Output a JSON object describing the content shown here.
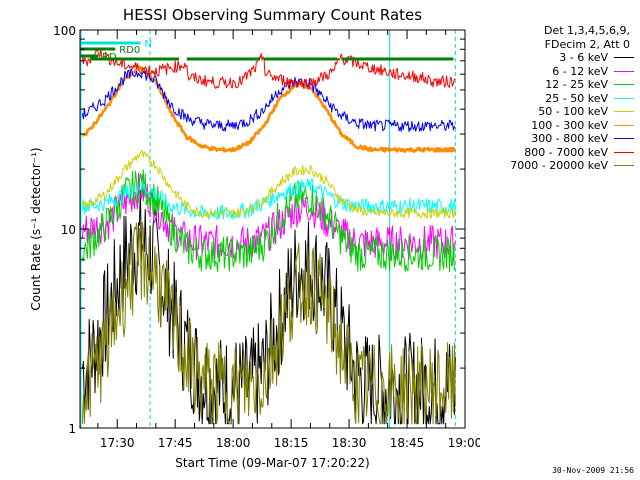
{
  "chart_data": {
    "type": "line",
    "title": "HESSI Observing Summary Count Rates",
    "xlabel": "Start Time (09-Mar-07 17:20:22)",
    "ylabel": "Count Rate (s⁻¹ detector⁻¹)",
    "y_scale": "log",
    "ylim": [
      1,
      100
    ],
    "xlim": [
      20.37,
      120.0
    ],
    "x_unit": "minutes after 17:00 UT",
    "x_tick_labels": [
      "17:30",
      "17:45",
      "18:00",
      "18:15",
      "18:30",
      "18:45",
      "19:00"
    ],
    "x_ticks": [
      30,
      45,
      60,
      75,
      90,
      105,
      120
    ],
    "y_tick_labels": [
      "1",
      "10",
      "100"
    ],
    "y_ticks": [
      1,
      10,
      100
    ],
    "legend": {
      "header": [
        "Det 1,3,4,5,6,9,",
        "FDecim 2, Att 0"
      ],
      "position": "right-outside"
    },
    "flags": [
      {
        "label": "N",
        "color": "#00e0e0",
        "x_start": 20.6,
        "x_end": 36.0
      },
      {
        "label": "RD0",
        "color": "#008000",
        "x_start": 20.6,
        "x_end": 29.5
      },
      {
        "label": "RD",
        "color": "#008000",
        "x_start": 20.6,
        "x_end": 25.0
      }
    ],
    "night_lines_solid": [
      20.6,
      100.5
    ],
    "night_lines_dashed": [
      38.5,
      117.5
    ],
    "series": [
      {
        "name": "3 - 6 keV",
        "color": "#000000",
        "x": [
          22,
          27,
          32,
          36,
          40,
          44,
          48,
          52,
          56,
          60,
          64,
          68,
          72,
          76,
          80,
          84,
          88,
          92,
          96,
          100,
          104,
          108,
          112,
          117
        ],
        "values": [
          2.0,
          3.5,
          7.0,
          8.8,
          7.0,
          4.0,
          2.5,
          1.8,
          1.6,
          1.6,
          1.6,
          2.0,
          3.5,
          6.0,
          6.6,
          5.0,
          3.0,
          1.8,
          1.6,
          1.6,
          1.6,
          1.6,
          1.6,
          1.6
        ]
      },
      {
        "name": "6 - 12 keV",
        "color": "#ff00ff",
        "x": [
          22,
          27,
          32,
          36,
          40,
          44,
          48,
          52,
          56,
          60,
          64,
          68,
          72,
          76,
          80,
          84,
          88,
          92,
          96,
          100,
          104,
          108,
          112,
          117
        ],
        "values": [
          10.0,
          10.5,
          13.5,
          16.0,
          13.0,
          10.0,
          8.8,
          8.5,
          8.5,
          8.5,
          8.5,
          9.0,
          10.5,
          12.5,
          13.0,
          11.0,
          9.5,
          8.5,
          8.5,
          8.5,
          8.5,
          8.5,
          8.5,
          8.5
        ]
      },
      {
        "name": "12 - 25 keV",
        "color": "#00d000",
        "x": [
          22,
          27,
          32,
          36,
          40,
          44,
          48,
          52,
          56,
          60,
          64,
          68,
          72,
          76,
          80,
          84,
          88,
          92,
          96,
          100,
          104,
          108,
          112,
          117
        ],
        "values": [
          8.0,
          10.5,
          15.0,
          17.0,
          14.0,
          10.0,
          8.0,
          7.5,
          7.5,
          7.5,
          7.5,
          8.5,
          11.5,
          14.0,
          14.5,
          12.0,
          9.0,
          7.5,
          7.5,
          7.5,
          7.5,
          7.5,
          7.5,
          7.5
        ]
      },
      {
        "name": "25 - 50 keV",
        "color": "#00ffff",
        "x": [
          22,
          27,
          32,
          36,
          40,
          44,
          48,
          52,
          56,
          60,
          64,
          68,
          72,
          76,
          80,
          84,
          88,
          92,
          96,
          100,
          104,
          108,
          112,
          117
        ],
        "values": [
          13.0,
          13.5,
          15.0,
          16.5,
          15.0,
          13.0,
          12.5,
          12.0,
          12.0,
          12.0,
          12.5,
          13.5,
          15.0,
          16.0,
          16.5,
          15.0,
          13.5,
          13.0,
          13.0,
          13.0,
          13.0,
          13.0,
          13.0,
          13.0
        ]
      },
      {
        "name": "50 - 100 keV",
        "color": "#d0d000",
        "x": [
          22,
          27,
          32,
          36,
          40,
          44,
          48,
          52,
          56,
          60,
          64,
          68,
          72,
          76,
          80,
          84,
          88,
          92,
          96,
          100,
          104,
          108,
          112,
          117
        ],
        "values": [
          13.0,
          15.0,
          20.0,
          24.0,
          21.0,
          16.0,
          13.0,
          12.0,
          12.0,
          12.0,
          12.5,
          14.0,
          17.0,
          19.5,
          20.0,
          17.5,
          14.0,
          12.5,
          12.0,
          12.0,
          12.0,
          12.0,
          12.0,
          12.0
        ]
      },
      {
        "name": "100 - 300 keV",
        "color": "#ff8c00",
        "x": [
          22,
          27,
          32,
          36,
          40,
          44,
          48,
          52,
          56,
          60,
          64,
          68,
          72,
          76,
          80,
          84,
          88,
          92,
          96,
          100,
          104,
          108,
          112,
          117
        ],
        "values": [
          30.0,
          40.0,
          57.0,
          65.0,
          55.0,
          38.0,
          29.0,
          26.0,
          25.0,
          25.0,
          27.0,
          33.0,
          45.0,
          53.0,
          52.0,
          40.0,
          30.0,
          26.0,
          25.0,
          25.0,
          25.0,
          25.0,
          25.0,
          25.0
        ]
      },
      {
        "name": "300 - 800 keV",
        "color": "#0000ff",
        "x": [
          22,
          27,
          32,
          36,
          40,
          44,
          48,
          52,
          56,
          60,
          64,
          68,
          72,
          76,
          80,
          84,
          88,
          92,
          96,
          100,
          104,
          108,
          112,
          117
        ],
        "values": [
          38.0,
          45.0,
          58.0,
          62.0,
          55.0,
          42.0,
          36.0,
          34.0,
          33.0,
          33.0,
          35.0,
          40.0,
          50.0,
          55.0,
          54.0,
          44.0,
          37.0,
          34.0,
          33.0,
          33.0,
          33.0,
          33.0,
          33.0,
          33.0
        ]
      },
      {
        "name": "800 - 7000 keV",
        "color": "#ff0000",
        "x": [
          22,
          24,
          25,
          30,
          36,
          40,
          46,
          48,
          48.2,
          56,
          62,
          66,
          68,
          68.2,
          74,
          80,
          86,
          88,
          88.2,
          95,
          102,
          108,
          112,
          117
        ],
        "values": [
          70.0,
          74.0,
          78.0,
          68.0,
          64.0,
          62.0,
          66.0,
          68.0,
          58.0,
          54.0,
          55.0,
          65.0,
          75.0,
          60.0,
          55.0,
          54.0,
          62.0,
          74.0,
          72.0,
          65.0,
          60.0,
          58.0,
          55.0,
          55.0
        ]
      },
      {
        "name": "7000 - 20000 keV",
        "color": "#808000",
        "x": [
          22,
          27,
          32,
          36,
          40,
          44,
          48,
          52,
          56,
          60,
          64,
          68,
          72,
          76,
          80,
          84,
          88,
          92,
          96,
          100,
          104,
          108,
          112,
          117
        ],
        "values": [
          1.6,
          2.5,
          5.0,
          7.0,
          6.0,
          3.5,
          2.2,
          1.7,
          1.6,
          1.6,
          1.6,
          1.8,
          3.0,
          5.0,
          5.5,
          4.0,
          2.5,
          1.6,
          1.6,
          1.6,
          1.6,
          1.6,
          1.6,
          1.6
        ]
      }
    ]
  },
  "footer": {
    "timestamp": "30-Nov-2009 21:56"
  }
}
